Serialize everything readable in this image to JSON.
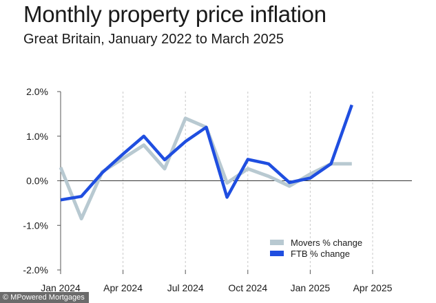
{
  "chart_data": {
    "type": "line",
    "title": "Monthly property price inflation",
    "subtitle": "Great Britain, January 2022 to March 2025",
    "xlabel": "",
    "ylabel": "",
    "x_ticks": [
      "Jan 2024",
      "Apr 2024",
      "Jul 2024",
      "Oct 2024",
      "Jan 2025",
      "Apr 2025"
    ],
    "y_ticks": [
      "2.0%",
      "1.0%",
      "0.0%",
      "-1.0%",
      "-2.0%"
    ],
    "ylim": [
      -2.0,
      2.0
    ],
    "x": [
      "2024-01",
      "2024-02",
      "2024-03",
      "2024-04",
      "2024-05",
      "2024-06",
      "2024-07",
      "2024-08",
      "2024-09",
      "2024-10",
      "2024-11",
      "2024-12",
      "2025-01",
      "2025-02",
      "2025-03"
    ],
    "series": [
      {
        "name": "Movers % change",
        "color": "#b8c9d1",
        "values": [
          0.3,
          -0.85,
          0.2,
          0.5,
          0.8,
          0.27,
          1.4,
          1.2,
          -0.05,
          0.27,
          0.1,
          -0.12,
          0.15,
          0.38,
          0.38
        ]
      },
      {
        "name": "FTB % change",
        "color": "#1f4ee0",
        "values": [
          -0.43,
          -0.35,
          0.18,
          0.6,
          1.0,
          0.47,
          0.88,
          1.2,
          -0.37,
          0.48,
          0.38,
          -0.04,
          0.06,
          0.38,
          1.7
        ]
      }
    ],
    "zero_line": true,
    "grid": "vertical-dashed",
    "legend_position": "bottom-right"
  },
  "credit": "© MPowered Mortgages"
}
